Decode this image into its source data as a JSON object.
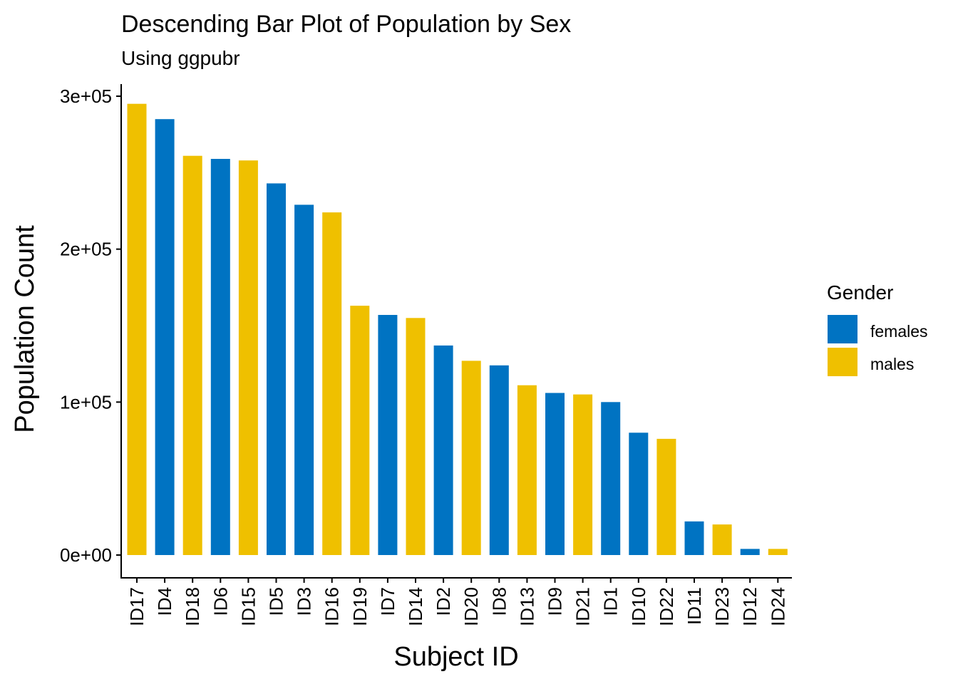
{
  "chart_data": {
    "type": "bar",
    "title": "Descending Bar Plot of Population by Sex",
    "subtitle": "Using ggpubr",
    "xlabel": "Subject ID",
    "ylabel": "Population Count",
    "ylim": [
      -15000,
      300000
    ],
    "yticks": [
      0,
      100000,
      200000,
      300000
    ],
    "ytick_labels": [
      "0e+00",
      "1e+05",
      "2e+05",
      "3e+05"
    ],
    "grid": false,
    "legend": {
      "title": "Gender",
      "position": "right",
      "entries": [
        {
          "label": "females",
          "color": "#0073C2"
        },
        {
          "label": "males",
          "color": "#EFC000"
        }
      ]
    },
    "colors": {
      "females": "#0073C2",
      "males": "#EFC000"
    },
    "categories": [
      "ID17",
      "ID4",
      "ID18",
      "ID6",
      "ID15",
      "ID5",
      "ID3",
      "ID16",
      "ID19",
      "ID7",
      "ID14",
      "ID2",
      "ID20",
      "ID8",
      "ID13",
      "ID9",
      "ID21",
      "ID1",
      "ID10",
      "ID22",
      "ID11",
      "ID23",
      "ID12",
      "ID24"
    ],
    "values": [
      295000,
      285000,
      261000,
      259000,
      258000,
      243000,
      229000,
      224000,
      163000,
      157000,
      155000,
      137000,
      127000,
      124000,
      111000,
      106000,
      105000,
      100000,
      80000,
      76000,
      22000,
      20000,
      4000,
      4000
    ],
    "groups": [
      "males",
      "females",
      "males",
      "females",
      "males",
      "females",
      "females",
      "males",
      "males",
      "females",
      "males",
      "females",
      "males",
      "females",
      "males",
      "females",
      "males",
      "females",
      "females",
      "males",
      "females",
      "males",
      "females",
      "males"
    ]
  }
}
